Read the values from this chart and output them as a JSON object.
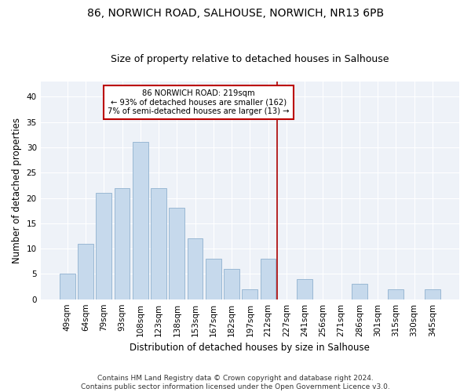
{
  "title": "86, NORWICH ROAD, SALHOUSE, NORWICH, NR13 6PB",
  "subtitle": "Size of property relative to detached houses in Salhouse",
  "xlabel": "Distribution of detached houses by size in Salhouse",
  "ylabel": "Number of detached properties",
  "categories": [
    "49sqm",
    "64sqm",
    "79sqm",
    "93sqm",
    "108sqm",
    "123sqm",
    "138sqm",
    "153sqm",
    "167sqm",
    "182sqm",
    "197sqm",
    "212sqm",
    "227sqm",
    "241sqm",
    "256sqm",
    "271sqm",
    "286sqm",
    "301sqm",
    "315sqm",
    "330sqm",
    "345sqm"
  ],
  "values": [
    5,
    11,
    21,
    22,
    31,
    22,
    18,
    12,
    8,
    6,
    2,
    8,
    0,
    4,
    0,
    0,
    3,
    0,
    2,
    0,
    2
  ],
  "bar_color": "#c6d9ec",
  "bar_edge_color": "#9ab8d4",
  "ylim": [
    0,
    43
  ],
  "yticks": [
    0,
    5,
    10,
    15,
    20,
    25,
    30,
    35,
    40
  ],
  "line_color": "#aa0000",
  "background_color": "#eef2f8",
  "annotation_title": "86 NORWICH ROAD: 219sqm",
  "annotation_line1": "← 93% of detached houses are smaller (162)",
  "annotation_line2": "7% of semi-detached houses are larger (13) →",
  "annotation_box_color": "#bb0000",
  "footer": "Contains HM Land Registry data © Crown copyright and database right 2024.\nContains public sector information licensed under the Open Government Licence v3.0.",
  "title_fontsize": 10,
  "subtitle_fontsize": 9,
  "axis_label_fontsize": 8.5,
  "tick_fontsize": 7.5,
  "footer_fontsize": 6.5
}
